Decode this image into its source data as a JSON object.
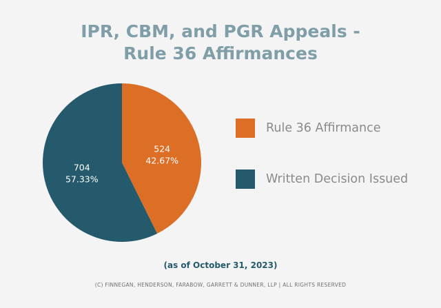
{
  "chart_data": {
    "type": "pie",
    "title": [
      "IPR, CBM, and PGR Appeals -",
      "Rule 36 Affirmances"
    ],
    "slices": [
      {
        "name": "Rule 36 Affirmance",
        "value": 524,
        "percent": "42.67%",
        "color": "#dd6e26"
      },
      {
        "name": "Written Decision Issued",
        "value": 704,
        "percent": "57.33%",
        "color": "#255a6c"
      }
    ],
    "start_angle_deg": 0,
    "direction": "clockwise",
    "legend_position": "right"
  },
  "note": "(as of October 31, 2023)",
  "footer": "(C) FINNEGAN, HENDERSON, FARABOW, GARRETT & DUNNER, LLP | ALL RIGHTS RESERVED",
  "colors": {
    "title": "#7f9ea8",
    "note": "#255a6c",
    "background": "#f4f4f4"
  }
}
